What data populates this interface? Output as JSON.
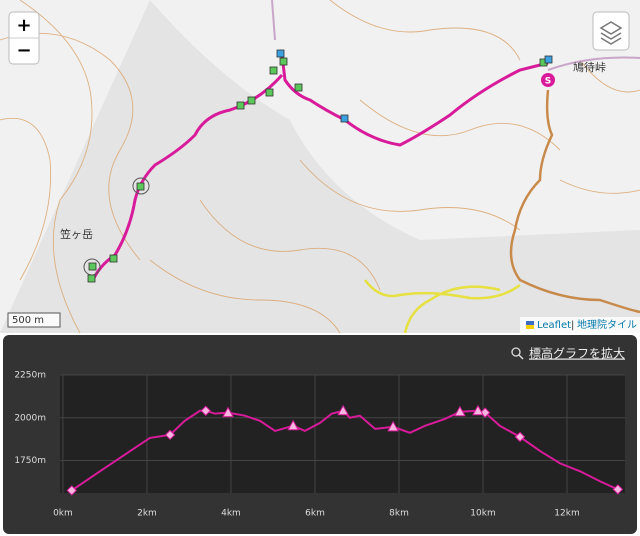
{
  "map": {
    "zoom_in": "+",
    "zoom_out": "−",
    "scale": "500 m",
    "attribution_leaflet": "Leaflet",
    "attribution_separator": "|",
    "attribution_tiles": "地理院タイル",
    "peak_label": "笠ヶ岳",
    "pass_label": "鳩待峠",
    "start": "S"
  },
  "profile_link": "標高グラフを拡大",
  "chart_data": {
    "type": "line",
    "color": "#d81b9a",
    "x": [
      0.21,
      0.88,
      1.6,
      2.07,
      2.55,
      2.9,
      3.26,
      3.4,
      3.62,
      3.93,
      4.33,
      4.69,
      5.05,
      5.48,
      5.76,
      6.12,
      6.4,
      6.67,
      6.83,
      7.07,
      7.43,
      7.86,
      8.26,
      8.62,
      9.1,
      9.45,
      9.88,
      10.05,
      10.4,
      10.88,
      11.36,
      11.83,
      12.31,
      12.79,
      13.21
    ],
    "values": [
      1575,
      1687,
      1805,
      1882,
      1900,
      1982,
      2041,
      2041,
      2024,
      2030,
      2012,
      1982,
      1923,
      1953,
      1923,
      1970,
      2024,
      2041,
      2000,
      2012,
      1935,
      1947,
      1912,
      1953,
      1994,
      2035,
      2041,
      2030,
      1953,
      1888,
      1805,
      1734,
      1687,
      1628,
      1581
    ],
    "markers": [
      {
        "x": 0.21,
        "y": 1575,
        "shape": "diamond"
      },
      {
        "x": 2.55,
        "y": 1900,
        "shape": "diamond"
      },
      {
        "x": 3.4,
        "y": 2041,
        "shape": "diamond"
      },
      {
        "x": 10.05,
        "y": 2030,
        "shape": "diamond"
      },
      {
        "x": 10.88,
        "y": 1888,
        "shape": "diamond"
      },
      {
        "x": 13.21,
        "y": 1581,
        "shape": "diamond"
      },
      {
        "x": 3.93,
        "y": 2030,
        "shape": "triangle"
      },
      {
        "x": 5.48,
        "y": 1953,
        "shape": "triangle"
      },
      {
        "x": 6.67,
        "y": 2041,
        "shape": "triangle"
      },
      {
        "x": 7.86,
        "y": 1947,
        "shape": "triangle"
      },
      {
        "x": 9.45,
        "y": 2035,
        "shape": "triangle"
      },
      {
        "x": 9.88,
        "y": 2041,
        "shape": "triangle"
      }
    ],
    "xlim": [
      -0.07,
      13.38
    ],
    "ylim": [
      1560,
      2250
    ],
    "xticks": [
      {
        "value": 0,
        "label": "0km"
      },
      {
        "value": 2,
        "label": "2km"
      },
      {
        "value": 4,
        "label": "4km"
      },
      {
        "value": 6,
        "label": "6km"
      },
      {
        "value": 8,
        "label": "8km"
      },
      {
        "value": 10,
        "label": "10km"
      },
      {
        "value": 12,
        "label": "12km"
      }
    ],
    "yticks": [
      {
        "value": 1750,
        "label": "1750m"
      },
      {
        "value": 2000,
        "label": "2000m"
      },
      {
        "value": 2250,
        "label": "2250m"
      }
    ],
    "grid": true
  }
}
